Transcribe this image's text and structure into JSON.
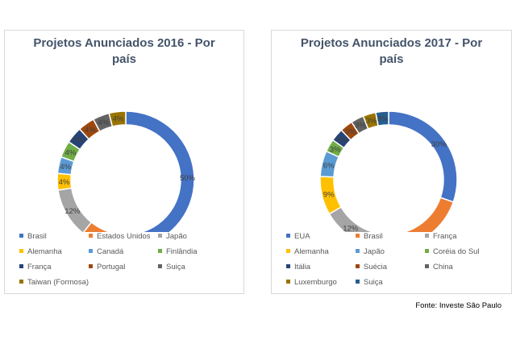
{
  "source_note": "Fonte: Investe São Paulo",
  "chart_data": [
    {
      "type": "pie",
      "title": "Projetos Anunciados 2016 - Por país",
      "title_lines": [
        "Projetos Anunciados 2016 - Por",
        "país"
      ],
      "slices": [
        {
          "name": "Brasil",
          "value": 50,
          "label": "50%",
          "color": "#4472c4"
        },
        {
          "name": "Estados Unidos",
          "value": 12,
          "label": "12%",
          "color": "#ed7d31"
        },
        {
          "name": "Japão",
          "value": 12,
          "label": "12%",
          "color": "#a5a5a5"
        },
        {
          "name": "Alemanha",
          "value": 4,
          "label": "4%",
          "color": "#ffc000"
        },
        {
          "name": "Canadá",
          "value": 4,
          "label": "4%",
          "color": "#5b9bd5"
        },
        {
          "name": "Finlândia",
          "value": 4,
          "label": "4%",
          "color": "#70ad47"
        },
        {
          "name": "França",
          "value": 4,
          "label": "4%",
          "color": "#264478"
        },
        {
          "name": "Portugal",
          "value": 4,
          "label": "4%",
          "color": "#9e480e"
        },
        {
          "name": "Suiça",
          "value": 4,
          "label": "4%",
          "color": "#636363"
        },
        {
          "name": "Taiwan (Formosa)",
          "value": 4,
          "label": "4%",
          "color": "#997300"
        }
      ],
      "legend_position": "bottom"
    },
    {
      "type": "pie",
      "title": "Projetos Anunciados 2017 - Por país",
      "title_lines": [
        "Projetos Anunciados 2017 - Por",
        "país"
      ],
      "slices": [
        {
          "name": "EUA",
          "value": 30,
          "label": "30%",
          "color": "#4472c4"
        },
        {
          "name": "Brasil",
          "value": 24,
          "label": "24%",
          "color": "#ed7d31"
        },
        {
          "name": "França",
          "value": 12,
          "label": "12%",
          "color": "#a5a5a5"
        },
        {
          "name": "Alemanha",
          "value": 9,
          "label": "9%",
          "color": "#ffc000"
        },
        {
          "name": "Japão",
          "value": 6,
          "label": "6%",
          "color": "#5b9bd5"
        },
        {
          "name": "Coréia do Sul",
          "value": 3,
          "label": "3%",
          "color": "#70ad47"
        },
        {
          "name": "Itália",
          "value": 3,
          "label": "3%",
          "color": "#264478"
        },
        {
          "name": "Suécia",
          "value": 3,
          "label": "3%",
          "color": "#9e480e"
        },
        {
          "name": "China",
          "value": 3,
          "label": "3%",
          "color": "#636363"
        },
        {
          "name": "Luxemburgo",
          "value": 3,
          "label": "3%",
          "color": "#997300"
        },
        {
          "name": "Suiça",
          "value": 3,
          "label": "3%",
          "color": "#255e91"
        }
      ],
      "legend_position": "bottom"
    }
  ]
}
